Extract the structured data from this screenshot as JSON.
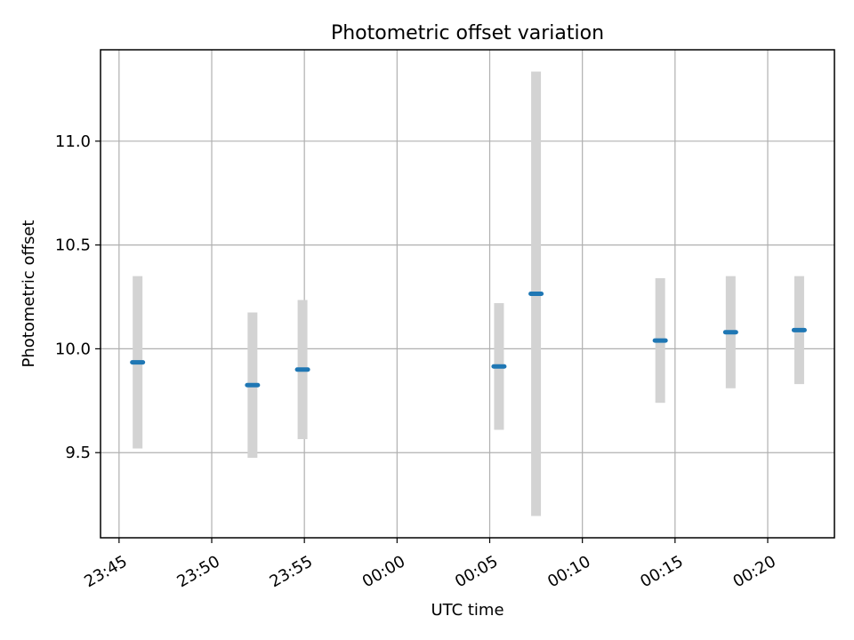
{
  "chart_data": {
    "type": "scatter",
    "title": "Photometric offset variation",
    "xlabel": "UTC time",
    "ylabel": "Photometric offset",
    "x_tick_labels": [
      "23:45",
      "23:50",
      "23:55",
      "00:00",
      "00:05",
      "00:10",
      "00:15",
      "00:20"
    ],
    "x_ticks_minutes": [
      -15,
      -10,
      -5,
      0,
      5,
      10,
      15,
      20
    ],
    "xlim_minutes": [
      -16.0,
      23.6
    ],
    "x_tick_label_rotation_deg": 30,
    "y_tick_labels": [
      "9.5",
      "10.0",
      "10.5",
      "11.0"
    ],
    "y_ticks": [
      9.5,
      10.0,
      10.5,
      11.0
    ],
    "ylim": [
      9.09,
      11.44
    ],
    "grid": true,
    "colors": {
      "point": "#1f77b4",
      "errorbar": "#d3d3d3",
      "grid": "#b0b0b0",
      "axes": "#000000"
    },
    "series": [
      {
        "points": [
          {
            "time": "23:46:00",
            "x_min": -14.0,
            "y": 9.935,
            "yerr": 0.415
          },
          {
            "time": "23:52:12",
            "x_min": -7.8,
            "y": 9.825,
            "yerr": 0.35
          },
          {
            "time": "23:54:54",
            "x_min": -5.1,
            "y": 9.9,
            "yerr": 0.335
          },
          {
            "time": "00:05:30",
            "x_min": 5.5,
            "y": 9.915,
            "yerr": 0.305
          },
          {
            "time": "00:07:30",
            "x_min": 7.5,
            "y": 10.265,
            "yerr": 1.07
          },
          {
            "time": "00:14:12",
            "x_min": 14.2,
            "y": 10.04,
            "yerr": 0.3
          },
          {
            "time": "00:18:00",
            "x_min": 18.0,
            "y": 10.08,
            "yerr": 0.27
          },
          {
            "time": "00:21:42",
            "x_min": 21.7,
            "y": 10.09,
            "yerr": 0.26
          }
        ]
      }
    ]
  }
}
